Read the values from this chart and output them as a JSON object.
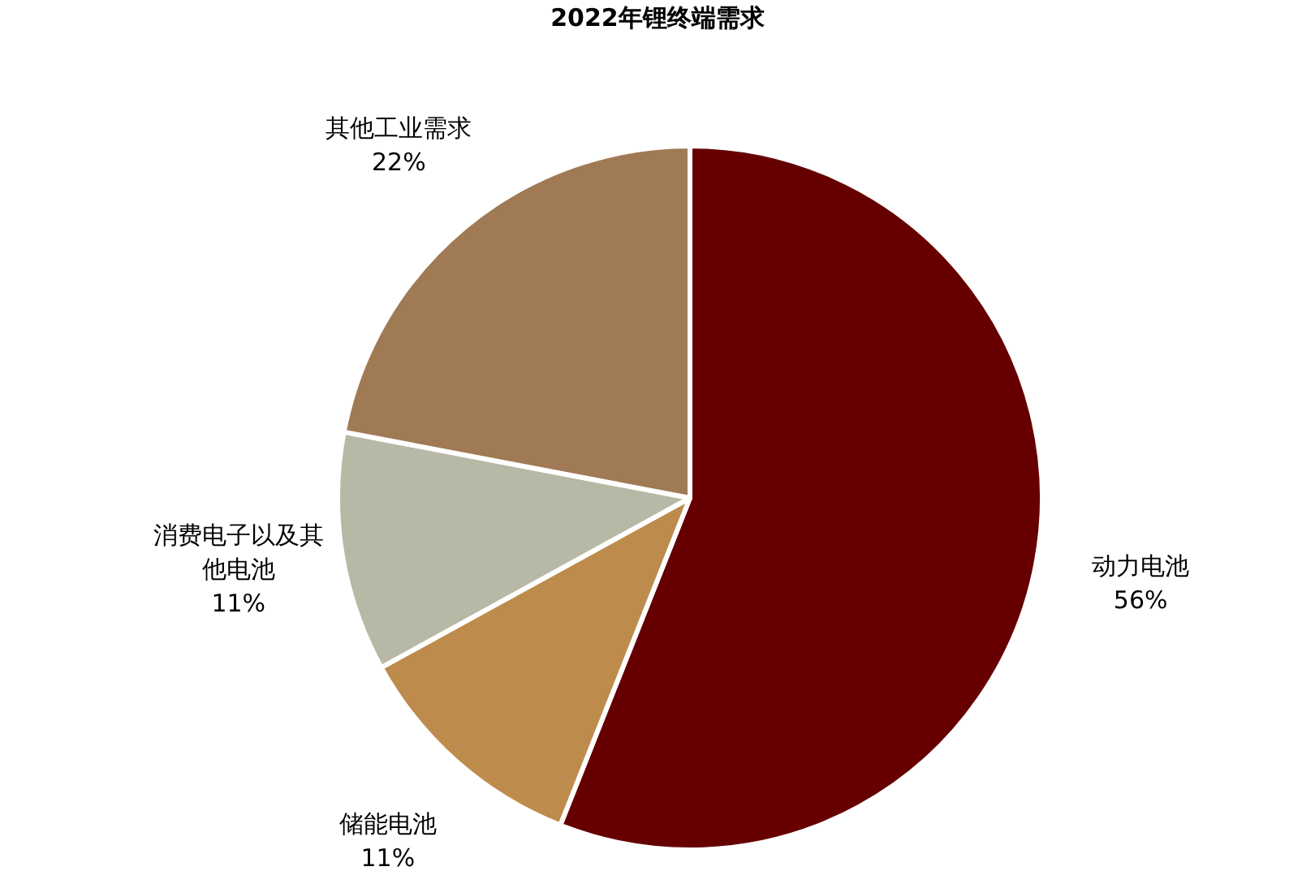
{
  "chart_data": {
    "type": "pie",
    "title": "2022年锂终端需求",
    "categories": [
      "动力电池",
      "储能电池",
      "消费电子以及其他电池",
      "其他工业需求"
    ],
    "values": [
      56,
      11,
      11,
      22
    ],
    "value_labels": [
      "56%",
      "11%",
      "11%",
      "22%"
    ],
    "colors": [
      "#660000",
      "#bd8c4c",
      "#b8b8a6",
      "#a07a55"
    ]
  }
}
